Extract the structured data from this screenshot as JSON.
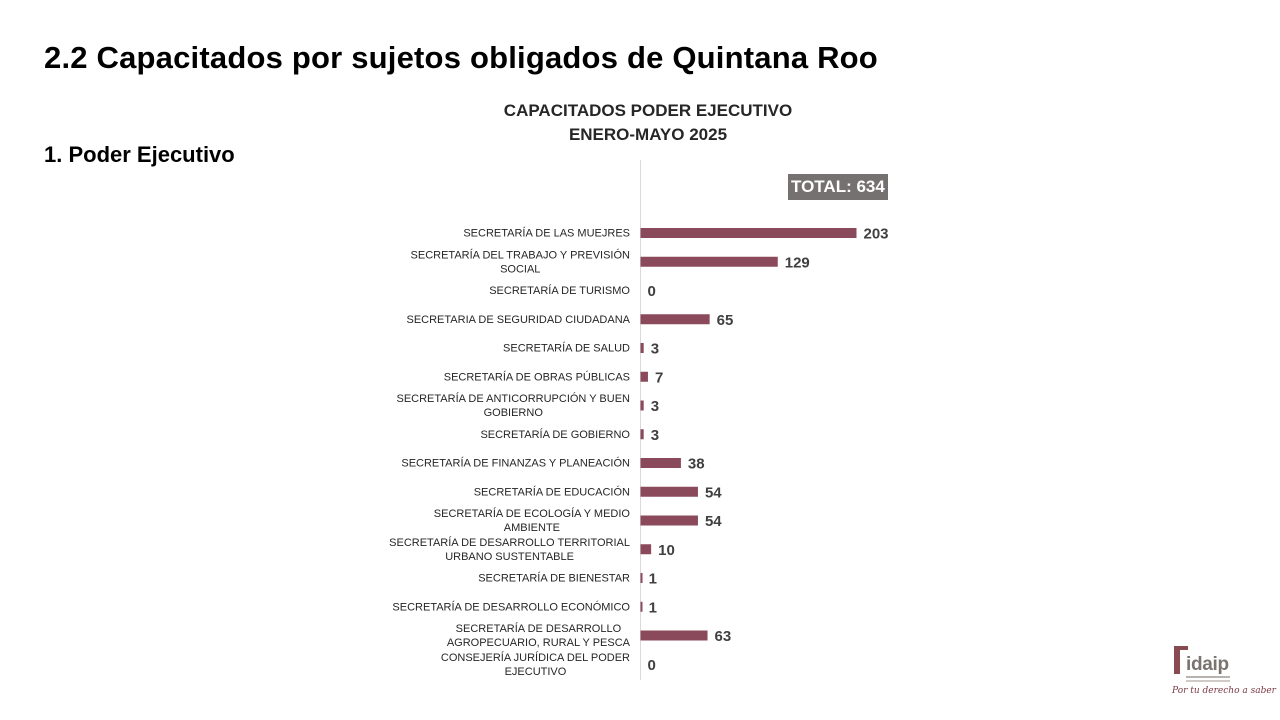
{
  "slide": {
    "title": "2.2 Capacitados por sujetos obligados de Quintana Roo",
    "section_heading": "1. Poder Ejecutivo"
  },
  "logo": {
    "text": "idaip",
    "slogan": "Por tu derecho a saber"
  },
  "chart_data": {
    "type": "bar",
    "orientation": "horizontal",
    "title": [
      "CAPACITADOS PODER EJECUTIVO",
      "ENERO-MAYO 2025"
    ],
    "annotation": "TOTAL: 634",
    "bar_color": "#8B4A5C",
    "label_color": "#404040",
    "grid": false,
    "x_range": [
      0,
      250
    ],
    "categories": [
      [
        "SECRETARÍA DE LAS MUEJRES"
      ],
      [
        "SECRETARÍA DEL TRABAJO Y PREVISIÓN",
        "SOCIAL"
      ],
      [
        "SECRETARÍA DE TURISMO"
      ],
      [
        "SECRETARIA DE SEGURIDAD CIUDADANA"
      ],
      [
        "SECRETARÍA DE SALUD"
      ],
      [
        "SECRETARÍA DE OBRAS PÚBLICAS"
      ],
      [
        "SECRETARÍA DE ANTICORRUPCIÓN Y BUEN",
        "GOBIERNO"
      ],
      [
        "SECRETARÍA DE GOBIERNO"
      ],
      [
        "SECRETARÍA DE FINANZAS Y PLANEACIÓN"
      ],
      [
        "SECRETARÍA DE EDUCACIÓN"
      ],
      [
        "SECRETARÍA DE ECOLOGÍA Y MEDIO",
        "AMBIENTE"
      ],
      [
        "SECRETARÍA DE DESARROLLO TERRITORIAL",
        "URBANO SUSTENTABLE"
      ],
      [
        "SECRETARÍA DE BIENESTAR"
      ],
      [
        "SECRETARÍA DE DESARROLLO ECONÓMICO"
      ],
      [
        "SECRETARÍA DE DESARROLLO",
        "AGROPECUARIO, RURAL Y PESCA"
      ],
      [
        "CONSEJERÍA JURÍDICA DEL PODER",
        "EJECUTIVO"
      ]
    ],
    "values": [
      203,
      129,
      0,
      65,
      3,
      7,
      3,
      3,
      38,
      54,
      54,
      10,
      1,
      1,
      63,
      0
    ]
  }
}
